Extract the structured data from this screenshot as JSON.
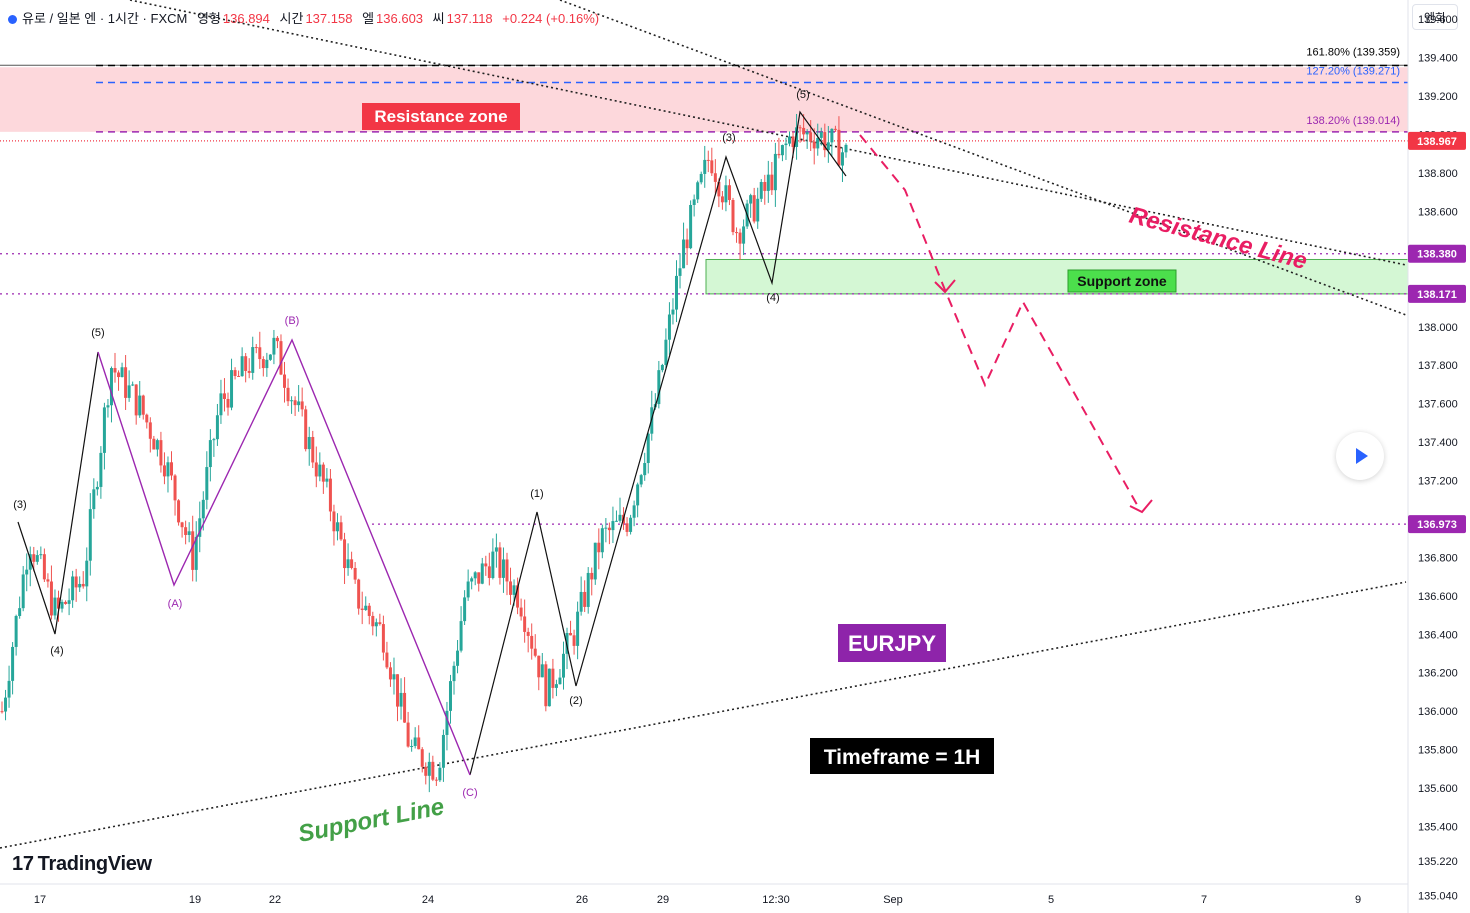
{
  "header": {
    "symbol": "유로 / 일본 엔 · 1시간 · FXCM",
    "open_label": "영형",
    "open": "136.894",
    "high_label": "시간",
    "high": "137.158",
    "low_label": "엘",
    "low": "136.603",
    "close_label": "씨",
    "close": "137.118",
    "change": "+0.224 (+0.16%)"
  },
  "currency_button": "엔화",
  "brand": "TradingView",
  "chart_data": {
    "type": "candlestick",
    "symbol": "EURJPY",
    "timeframe": "1H",
    "y_axis": {
      "min": 134.95,
      "max": 139.7,
      "ticks": [
        "139.600",
        "139.400",
        "139.200",
        "139.000",
        "138.800",
        "138.600",
        "138.400",
        "138.200",
        "138.000",
        "137.800",
        "137.600",
        "137.400",
        "137.200",
        "137.000",
        "136.800",
        "136.600",
        "136.400",
        "136.200",
        "136.000",
        "135.800",
        "135.600",
        "135.400",
        "135.220",
        "135.040"
      ],
      "price_labels": [
        {
          "value": "138.967",
          "color": "#f23645"
        },
        {
          "value": "138.380",
          "color": "#9c27b0"
        },
        {
          "value": "138.171",
          "color": "#9c27b0"
        },
        {
          "value": "136.973",
          "color": "#9c27b0"
        }
      ]
    },
    "x_axis": {
      "labels": [
        "17",
        "19",
        "22",
        "24",
        "26",
        "29",
        "12:30",
        "Sep",
        "5",
        "7",
        "9"
      ]
    },
    "price_path": [
      [
        136.0,
        135.8
      ],
      [
        136.9,
        136.4
      ],
      [
        136.5,
        136.3
      ],
      [
        136.7,
        136.6
      ],
      [
        137.8,
        137.3
      ],
      [
        137.6,
        137.4
      ],
      [
        137.3,
        137.5
      ],
      [
        136.8,
        137.2
      ],
      [
        137.6,
        137.5
      ],
      [
        137.8,
        137.5
      ],
      [
        137.9,
        137.5
      ],
      [
        137.5,
        137.2
      ],
      [
        137.1,
        136.8
      ],
      [
        136.6,
        136.5
      ],
      [
        136.4,
        136.2
      ],
      [
        135.8,
        135.9
      ],
      [
        135.7,
        135.6
      ],
      [
        136.6,
        136.5
      ],
      [
        136.8,
        136.7
      ],
      [
        136.6,
        136.4
      ],
      [
        136.1,
        136.2
      ],
      [
        136.4,
        136.5
      ],
      [
        136.9,
        137.1
      ],
      [
        137.0,
        136.9
      ],
      [
        137.6,
        137.9
      ],
      [
        138.4,
        138.6
      ],
      [
        138.9,
        138.7
      ],
      [
        138.5,
        138.3
      ],
      [
        138.7,
        138.9
      ],
      [
        139.0,
        138.9
      ],
      [
        139.0,
        138.9
      ],
      [
        138.9,
        138.9
      ]
    ],
    "zones": [
      {
        "label": "Resistance zone",
        "from": 139.014,
        "to": 139.35
      },
      {
        "label": "Support zone",
        "from": 138.171,
        "to": 138.35
      }
    ],
    "fib_levels": [
      {
        "label": "161.80% (139.359)",
        "value": 139.359,
        "color": "#000000"
      },
      {
        "label": "127.20% (139.271)",
        "value": 139.271,
        "color": "#2962ff"
      },
      {
        "label": "138.20% (139.014)",
        "value": 139.014,
        "color": "#9c27b0"
      }
    ],
    "horizontal_levels": [
      138.967,
      138.38,
      138.171,
      136.973
    ],
    "wave_labels": [
      "(3)",
      "(4)",
      "(5)",
      "(A)",
      "(B)",
      "(C)",
      "(1)",
      "(2)",
      "(3)",
      "(4)",
      "(5)"
    ],
    "annotations": {
      "resistance_zone": "Resistance zone",
      "support_zone": "Support zone",
      "resistance_line": "Resistance Line",
      "support_line": "Support Line",
      "symbol_tag": "EURJPY",
      "timeframe_tag": "Timeframe = 1H"
    },
    "colors": {
      "up": "#26a69a",
      "down": "#ef5350",
      "purple_line": "#9c27b0",
      "projection": "#e91e63"
    }
  }
}
